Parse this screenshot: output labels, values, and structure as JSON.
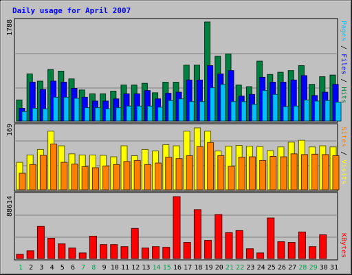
{
  "chart_data": [
    {
      "type": "bar",
      "title": "Daily usage for April 2007",
      "categories": [
        "1",
        "2",
        "3",
        "4",
        "5",
        "6",
        "7",
        "8",
        "9",
        "10",
        "11",
        "12",
        "13",
        "14",
        "15",
        "16",
        "17",
        "18",
        "19",
        "20",
        "21",
        "22",
        "23",
        "24",
        "25",
        "26",
        "27",
        "28",
        "29",
        "30",
        "31"
      ],
      "weekend_days": [
        "1",
        "7",
        "8",
        "14",
        "15",
        "21",
        "22",
        "28",
        "29"
      ],
      "ylim_label": "1788",
      "series": [
        {
          "name": "Hits",
          "color": "#008040",
          "values": [
            380,
            850,
            720,
            930,
            900,
            760,
            560,
            490,
            490,
            540,
            650,
            650,
            680,
            510,
            700,
            700,
            1010,
            1010,
            1788,
            1170,
            1210,
            650,
            620,
            1080,
            840,
            880,
            910,
            1000,
            660,
            800,
            830
          ]
        },
        {
          "name": "Files",
          "color": "#0000ff",
          "values": [
            230,
            700,
            570,
            720,
            700,
            590,
            430,
            360,
            360,
            400,
            490,
            490,
            550,
            400,
            500,
            520,
            740,
            740,
            1000,
            850,
            910,
            450,
            480,
            790,
            700,
            700,
            740,
            820,
            460,
            520,
            660
          ]
        },
        {
          "name": "Pages",
          "color": "#00c0ff",
          "values": [
            170,
            230,
            220,
            430,
            430,
            410,
            240,
            240,
            220,
            240,
            270,
            270,
            270,
            250,
            370,
            400,
            350,
            350,
            600,
            660,
            350,
            350,
            300,
            550,
            480,
            260,
            270,
            380,
            360,
            370,
            340
          ]
        }
      ],
      "axis_labels": {
        "right": [
          {
            "text": "Pages",
            "color": "#00c0ff"
          },
          {
            "text": " / ",
            "color": "#000000"
          },
          {
            "text": "Files",
            "color": "#0000ff"
          },
          {
            "text": " / ",
            "color": "#000000"
          },
          {
            "text": "Hits",
            "color": "#008040"
          }
        ]
      }
    },
    {
      "type": "bar",
      "ylim_label": "169",
      "series": [
        {
          "name": "Visits",
          "color": "#ffff00",
          "values": [
            75,
            95,
            110,
            160,
            120,
            98,
            95,
            95,
            94,
            90,
            120,
            93,
            110,
            106,
            123,
            120,
            160,
            169,
            160,
            106,
            119,
            121,
            119,
            118,
            107,
            117,
            130,
            135,
            117,
            120,
            117
          ]
        },
        {
          "name": "Sites",
          "color": "#ff8000",
          "values": [
            45,
            69,
            94,
            125,
            75,
            70,
            63,
            60,
            65,
            69,
            77,
            80,
            69,
            73,
            89,
            85,
            93,
            118,
            129,
            93,
            64,
            89,
            90,
            80,
            91,
            90,
            98,
            96,
            97,
            96,
            93
          ]
        }
      ],
      "axis_labels": {
        "right": [
          {
            "text": "Sites",
            "color": "#ff8000"
          },
          {
            "text": " / ",
            "color": "#000000"
          },
          {
            "text": "Visits",
            "color": "#ffff00"
          }
        ]
      }
    },
    {
      "type": "bar",
      "ylim_label": "88614",
      "series": [
        {
          "name": "KBytes",
          "color": "#ff0000",
          "values": [
            6000,
            11000,
            46000,
            29000,
            21000,
            15000,
            8000,
            32000,
            20000,
            20000,
            17000,
            43000,
            15000,
            17000,
            16000,
            88614,
            23000,
            70000,
            26000,
            63000,
            37000,
            40000,
            14000,
            8000,
            58000,
            24000,
            23000,
            38000,
            17000,
            34000,
            0
          ]
        }
      ],
      "axis_labels": {
        "right": [
          {
            "text": "KBytes",
            "color": "#ff0000"
          }
        ]
      }
    }
  ],
  "colors": {
    "background": "#c0c0c0",
    "title": "#0000ff",
    "weekend_label": "#00a050",
    "weekday_label": "#000000"
  }
}
